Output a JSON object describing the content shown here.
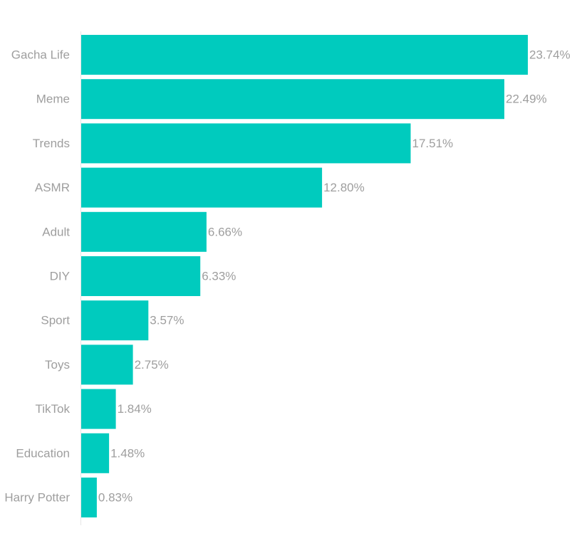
{
  "chart_data": {
    "type": "bar",
    "orientation": "horizontal",
    "title": "",
    "xlabel": "",
    "ylabel": "",
    "categories": [
      "Gacha Life",
      "Meme",
      "Trends",
      "ASMR",
      "Adult",
      "DIY",
      "Sport",
      "Toys",
      "TikTok",
      "Education",
      "Harry Potter"
    ],
    "values": [
      23.74,
      22.49,
      17.51,
      12.8,
      6.66,
      6.33,
      3.57,
      2.75,
      1.84,
      1.48,
      0.83
    ],
    "value_labels": [
      "23.74%",
      "22.49%",
      "17.51%",
      "12.80%",
      "6.66%",
      "6.33%",
      "3.57%",
      "2.75%",
      "1.84%",
      "1.48%",
      "0.83%"
    ],
    "unit": "%",
    "xlim": [
      0,
      23.74
    ],
    "grid": false,
    "legend": "none",
    "colors": {
      "bar": "#00CBBE",
      "label": "#9e9e9e",
      "axis": "#e6e6e6"
    }
  }
}
